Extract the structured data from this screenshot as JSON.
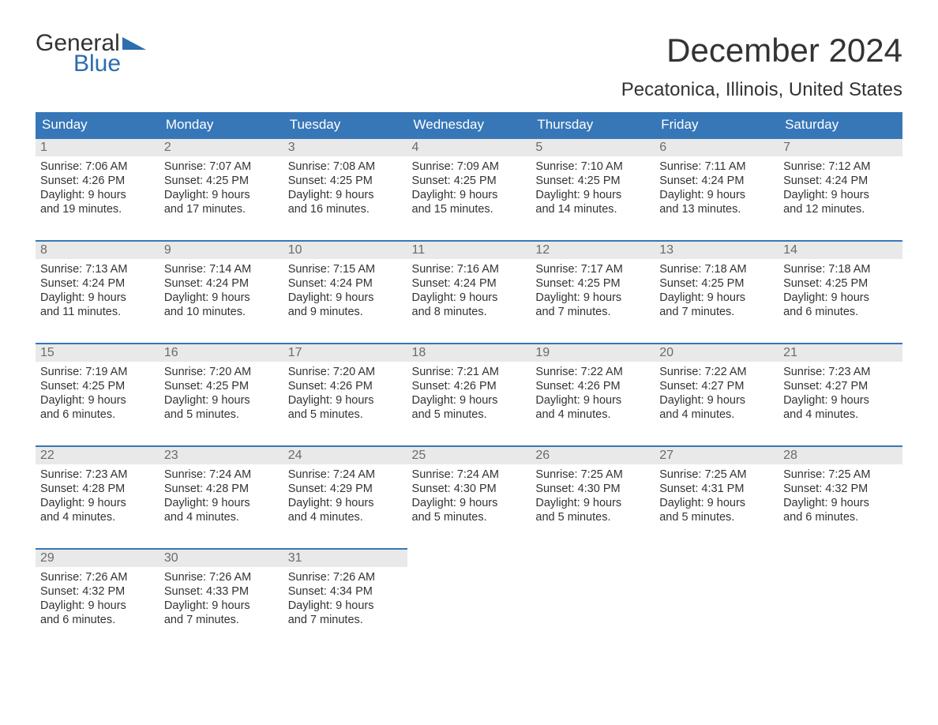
{
  "logo": {
    "word1": "General",
    "word2": "Blue"
  },
  "title": "December 2024",
  "location": "Pecatonica, Illinois, United States",
  "colors": {
    "header_bg": "#3777b8",
    "header_text": "#ffffff",
    "rule": "#3777b8",
    "daynum_bg": "#e9e9e9",
    "daynum_text": "#6b6b6b",
    "body_text": "#333333",
    "logo_accent": "#2a6db1",
    "page_bg": "#ffffff"
  },
  "weekdays": [
    "Sunday",
    "Monday",
    "Tuesday",
    "Wednesday",
    "Thursday",
    "Friday",
    "Saturday"
  ],
  "weeks": [
    [
      {
        "n": "1",
        "sr": "Sunrise: 7:06 AM",
        "ss": "Sunset: 4:26 PM",
        "d1": "Daylight: 9 hours",
        "d2": "and 19 minutes."
      },
      {
        "n": "2",
        "sr": "Sunrise: 7:07 AM",
        "ss": "Sunset: 4:25 PM",
        "d1": "Daylight: 9 hours",
        "d2": "and 17 minutes."
      },
      {
        "n": "3",
        "sr": "Sunrise: 7:08 AM",
        "ss": "Sunset: 4:25 PM",
        "d1": "Daylight: 9 hours",
        "d2": "and 16 minutes."
      },
      {
        "n": "4",
        "sr": "Sunrise: 7:09 AM",
        "ss": "Sunset: 4:25 PM",
        "d1": "Daylight: 9 hours",
        "d2": "and 15 minutes."
      },
      {
        "n": "5",
        "sr": "Sunrise: 7:10 AM",
        "ss": "Sunset: 4:25 PM",
        "d1": "Daylight: 9 hours",
        "d2": "and 14 minutes."
      },
      {
        "n": "6",
        "sr": "Sunrise: 7:11 AM",
        "ss": "Sunset: 4:24 PM",
        "d1": "Daylight: 9 hours",
        "d2": "and 13 minutes."
      },
      {
        "n": "7",
        "sr": "Sunrise: 7:12 AM",
        "ss": "Sunset: 4:24 PM",
        "d1": "Daylight: 9 hours",
        "d2": "and 12 minutes."
      }
    ],
    [
      {
        "n": "8",
        "sr": "Sunrise: 7:13 AM",
        "ss": "Sunset: 4:24 PM",
        "d1": "Daylight: 9 hours",
        "d2": "and 11 minutes."
      },
      {
        "n": "9",
        "sr": "Sunrise: 7:14 AM",
        "ss": "Sunset: 4:24 PM",
        "d1": "Daylight: 9 hours",
        "d2": "and 10 minutes."
      },
      {
        "n": "10",
        "sr": "Sunrise: 7:15 AM",
        "ss": "Sunset: 4:24 PM",
        "d1": "Daylight: 9 hours",
        "d2": "and 9 minutes."
      },
      {
        "n": "11",
        "sr": "Sunrise: 7:16 AM",
        "ss": "Sunset: 4:24 PM",
        "d1": "Daylight: 9 hours",
        "d2": "and 8 minutes."
      },
      {
        "n": "12",
        "sr": "Sunrise: 7:17 AM",
        "ss": "Sunset: 4:25 PM",
        "d1": "Daylight: 9 hours",
        "d2": "and 7 minutes."
      },
      {
        "n": "13",
        "sr": "Sunrise: 7:18 AM",
        "ss": "Sunset: 4:25 PM",
        "d1": "Daylight: 9 hours",
        "d2": "and 7 minutes."
      },
      {
        "n": "14",
        "sr": "Sunrise: 7:18 AM",
        "ss": "Sunset: 4:25 PM",
        "d1": "Daylight: 9 hours",
        "d2": "and 6 minutes."
      }
    ],
    [
      {
        "n": "15",
        "sr": "Sunrise: 7:19 AM",
        "ss": "Sunset: 4:25 PM",
        "d1": "Daylight: 9 hours",
        "d2": "and 6 minutes."
      },
      {
        "n": "16",
        "sr": "Sunrise: 7:20 AM",
        "ss": "Sunset: 4:25 PM",
        "d1": "Daylight: 9 hours",
        "d2": "and 5 minutes."
      },
      {
        "n": "17",
        "sr": "Sunrise: 7:20 AM",
        "ss": "Sunset: 4:26 PM",
        "d1": "Daylight: 9 hours",
        "d2": "and 5 minutes."
      },
      {
        "n": "18",
        "sr": "Sunrise: 7:21 AM",
        "ss": "Sunset: 4:26 PM",
        "d1": "Daylight: 9 hours",
        "d2": "and 5 minutes."
      },
      {
        "n": "19",
        "sr": "Sunrise: 7:22 AM",
        "ss": "Sunset: 4:26 PM",
        "d1": "Daylight: 9 hours",
        "d2": "and 4 minutes."
      },
      {
        "n": "20",
        "sr": "Sunrise: 7:22 AM",
        "ss": "Sunset: 4:27 PM",
        "d1": "Daylight: 9 hours",
        "d2": "and 4 minutes."
      },
      {
        "n": "21",
        "sr": "Sunrise: 7:23 AM",
        "ss": "Sunset: 4:27 PM",
        "d1": "Daylight: 9 hours",
        "d2": "and 4 minutes."
      }
    ],
    [
      {
        "n": "22",
        "sr": "Sunrise: 7:23 AM",
        "ss": "Sunset: 4:28 PM",
        "d1": "Daylight: 9 hours",
        "d2": "and 4 minutes."
      },
      {
        "n": "23",
        "sr": "Sunrise: 7:24 AM",
        "ss": "Sunset: 4:28 PM",
        "d1": "Daylight: 9 hours",
        "d2": "and 4 minutes."
      },
      {
        "n": "24",
        "sr": "Sunrise: 7:24 AM",
        "ss": "Sunset: 4:29 PM",
        "d1": "Daylight: 9 hours",
        "d2": "and 4 minutes."
      },
      {
        "n": "25",
        "sr": "Sunrise: 7:24 AM",
        "ss": "Sunset: 4:30 PM",
        "d1": "Daylight: 9 hours",
        "d2": "and 5 minutes."
      },
      {
        "n": "26",
        "sr": "Sunrise: 7:25 AM",
        "ss": "Sunset: 4:30 PM",
        "d1": "Daylight: 9 hours",
        "d2": "and 5 minutes."
      },
      {
        "n": "27",
        "sr": "Sunrise: 7:25 AM",
        "ss": "Sunset: 4:31 PM",
        "d1": "Daylight: 9 hours",
        "d2": "and 5 minutes."
      },
      {
        "n": "28",
        "sr": "Sunrise: 7:25 AM",
        "ss": "Sunset: 4:32 PM",
        "d1": "Daylight: 9 hours",
        "d2": "and 6 minutes."
      }
    ],
    [
      {
        "n": "29",
        "sr": "Sunrise: 7:26 AM",
        "ss": "Sunset: 4:32 PM",
        "d1": "Daylight: 9 hours",
        "d2": "and 6 minutes."
      },
      {
        "n": "30",
        "sr": "Sunrise: 7:26 AM",
        "ss": "Sunset: 4:33 PM",
        "d1": "Daylight: 9 hours",
        "d2": "and 7 minutes."
      },
      {
        "n": "31",
        "sr": "Sunrise: 7:26 AM",
        "ss": "Sunset: 4:34 PM",
        "d1": "Daylight: 9 hours",
        "d2": "and 7 minutes."
      },
      null,
      null,
      null,
      null
    ]
  ]
}
